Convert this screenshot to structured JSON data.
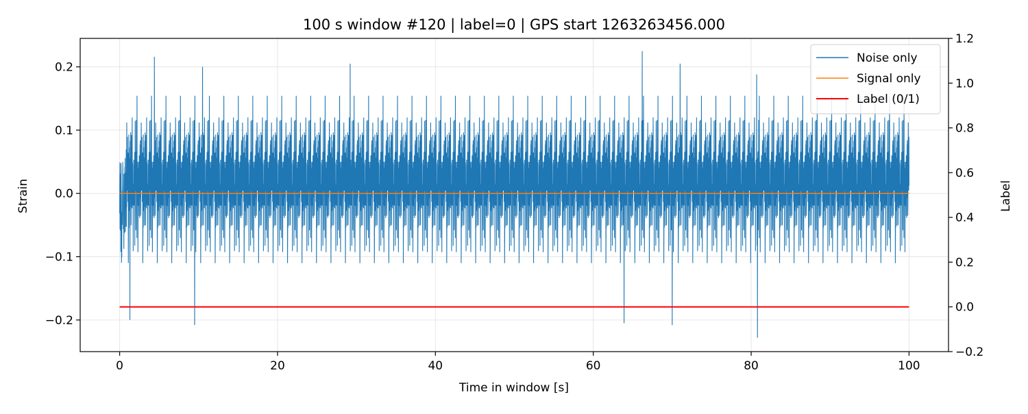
{
  "chart_data": {
    "type": "line",
    "title": "100 s window #120 | label=0 | GPS start 1263263456.000",
    "xlabel": "Time in window [s]",
    "ylabel": "Strain",
    "y2label": "Label",
    "xlim": [
      -5,
      105
    ],
    "ylim": [
      -0.25,
      0.245
    ],
    "y2lim": [
      -0.2,
      1.2
    ],
    "xticks": [
      0,
      20,
      40,
      60,
      80,
      100
    ],
    "xtick_labels": [
      "0",
      "20",
      "40",
      "60",
      "80",
      "100"
    ],
    "yticks": [
      0.2,
      0.1,
      0.0,
      -0.1,
      -0.2
    ],
    "ytick_labels": [
      "0.2",
      "0.1",
      "0.0",
      "−0.1",
      "−0.2"
    ],
    "y2ticks": [
      1.2,
      1.0,
      0.8,
      0.6,
      0.4,
      0.2,
      0.0,
      -0.2
    ],
    "y2tick_labels": [
      "1.2",
      "1.0",
      "0.8",
      "0.6",
      "0.4",
      "0.2",
      "0.0",
      "−0.2"
    ],
    "grid": true,
    "legend_position": "top-right",
    "series": [
      {
        "name": "Noise only",
        "color": "#1f77b4",
        "axis": "left",
        "x_range": [
          0,
          100
        ],
        "typical_amplitude": 0.12,
        "extreme_peaks": [
          {
            "x": 4.4,
            "y": 0.216
          },
          {
            "x": 10.5,
            "y": 0.2
          },
          {
            "x": 29.2,
            "y": 0.205
          },
          {
            "x": 66.2,
            "y": 0.225
          },
          {
            "x": 71.0,
            "y": 0.205
          },
          {
            "x": 80.7,
            "y": 0.188
          },
          {
            "x": 1.3,
            "y": -0.2
          },
          {
            "x": 9.5,
            "y": -0.208
          },
          {
            "x": 63.9,
            "y": -0.205
          },
          {
            "x": 70.0,
            "y": -0.208
          },
          {
            "x": 80.8,
            "y": -0.228
          }
        ]
      },
      {
        "name": "Signal only",
        "color": "#ff7f0e",
        "axis": "left",
        "x": [
          0,
          100
        ],
        "y": [
          0,
          0
        ]
      },
      {
        "name": "Label (0/1)",
        "color": "#ff0000",
        "axis": "right",
        "x": [
          0,
          100
        ],
        "y": [
          0,
          0
        ]
      }
    ]
  }
}
